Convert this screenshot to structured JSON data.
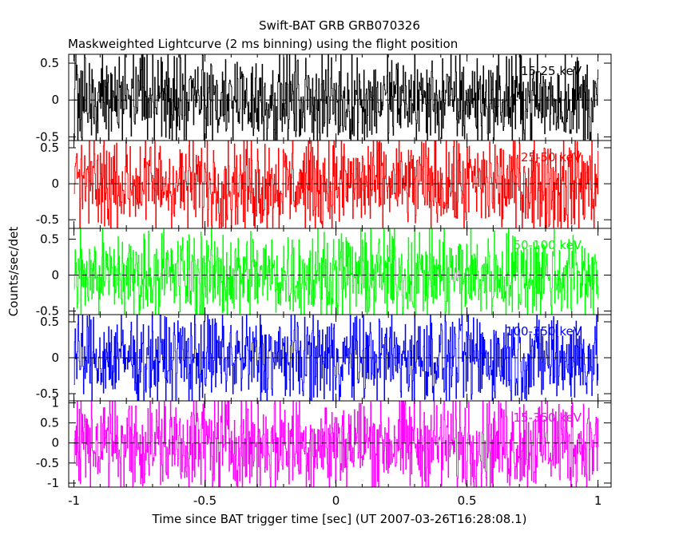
{
  "chart_data": {
    "type": "line",
    "title": "Swift-BAT GRB GRB070326",
    "subtitle": "Maskweighted Lightcurve (2 ms binning) using the flight position",
    "xlabel": "Time since BAT trigger time [sec] (UT 2007-03-26T16:28:08.1)",
    "ylabel": "Counts/sec/det",
    "xlim": [
      -1.02,
      1.05
    ],
    "x_ticks": [
      "-1",
      "-0.5",
      "0",
      "0.5",
      "1"
    ],
    "x_tick_values": [
      -1,
      -0.5,
      0,
      0.5,
      1
    ],
    "bin_width_sec": 0.002,
    "time_range": [
      -1,
      1
    ],
    "panels": [
      {
        "name": "15-25 keV",
        "color": "#000000",
        "ylim": [
          -0.55,
          0.62
        ],
        "amplitude": 0.42,
        "ticks": [
          {
            "v": 0.5,
            "label": "0.5"
          },
          {
            "v": 0,
            "label": "0"
          },
          {
            "v": -0.5,
            "label": "-0.5"
          }
        ]
      },
      {
        "name": "25-50 keV",
        "color": "#ff0000",
        "ylim": [
          -0.62,
          0.6
        ],
        "amplitude": 0.45,
        "ticks": [
          {
            "v": 0.5,
            "label": "0.5"
          },
          {
            "v": 0,
            "label": "0"
          },
          {
            "v": -0.5,
            "label": "-0.5"
          }
        ]
      },
      {
        "name": "50-100 keV",
        "color": "#00ff00",
        "ylim": [
          -0.55,
          0.65
        ],
        "amplitude": 0.42,
        "ticks": [
          {
            "v": 0.5,
            "label": "0.5"
          },
          {
            "v": 0,
            "label": "0"
          },
          {
            "v": -0.5,
            "label": "-0.5"
          }
        ]
      },
      {
        "name": "100-350 keV",
        "color": "#0000ff",
        "ylim": [
          -0.6,
          0.6
        ],
        "amplitude": 0.42,
        "ticks": [
          {
            "v": 0.5,
            "label": "0.5"
          },
          {
            "v": 0,
            "label": "0"
          },
          {
            "v": -0.5,
            "label": "-0.5"
          }
        ]
      },
      {
        "name": "15-350 keV",
        "color": "#ff00ff",
        "ylim": [
          -1.1,
          1.05
        ],
        "amplitude": 0.82,
        "ticks": [
          {
            "v": 1,
            "label": "1"
          },
          {
            "v": 0.5,
            "label": "0.5"
          },
          {
            "v": 0,
            "label": "0"
          },
          {
            "v": -0.5,
            "label": "-0.5"
          },
          {
            "v": -1,
            "label": "-1"
          }
        ]
      }
    ]
  }
}
